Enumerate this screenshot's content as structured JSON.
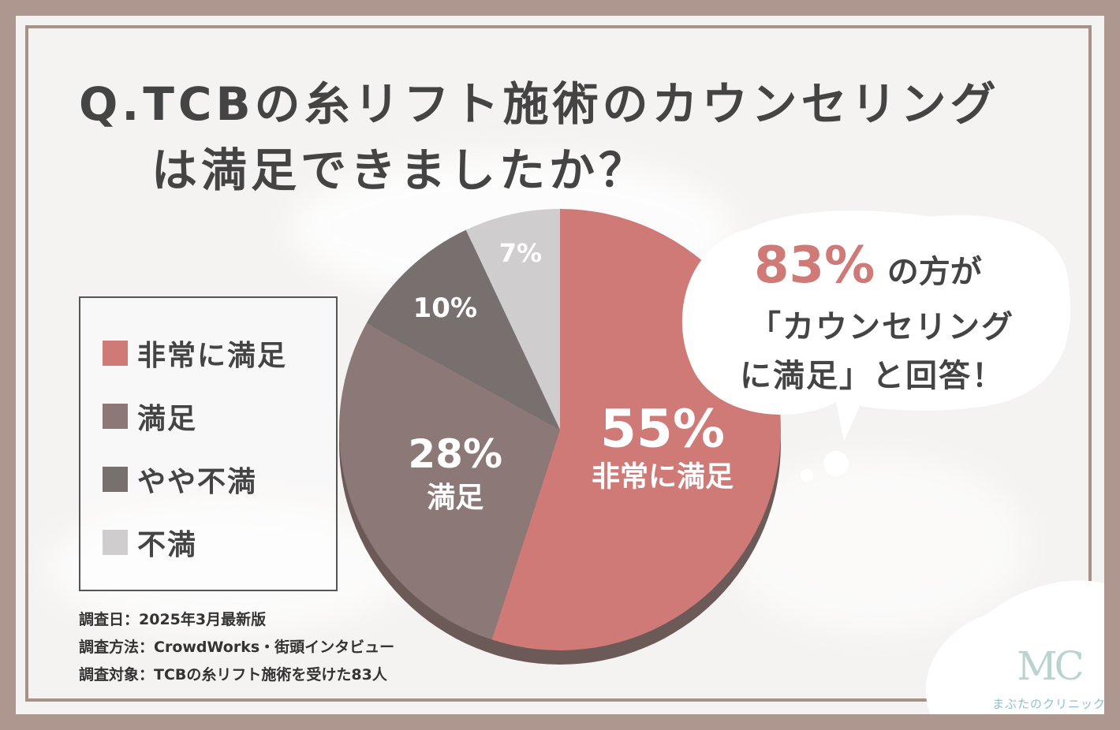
{
  "title": {
    "line1": "Q.TCBの糸リフト施術のカウンセリング",
    "line2": "は満足できましたか？"
  },
  "chart_data": {
    "type": "pie",
    "categories": [
      "非常に満足",
      "満足",
      "やや不満",
      "不満"
    ],
    "values": [
      55,
      28,
      10,
      7
    ],
    "colors": [
      "#cf7a77",
      "#8c7977",
      "#77706f",
      "#cfcdcd"
    ],
    "slice_labels": [
      {
        "pct": "55%",
        "name": "非常に満足"
      },
      {
        "pct": "28%",
        "name": "満足"
      },
      {
        "pct": "10%",
        "name": ""
      },
      {
        "pct": "7%",
        "name": ""
      }
    ]
  },
  "legend": [
    {
      "label": "非常に満足",
      "color": "#cf7a77"
    },
    {
      "label": "満足",
      "color": "#8c7977"
    },
    {
      "label": "やや不満",
      "color": "#77706f"
    },
    {
      "label": "不満",
      "color": "#cfcdcd"
    }
  ],
  "callout": {
    "percent": "83%",
    "text1": "の方が",
    "text2": "「カウンセリング",
    "text3": "に満足」と回答！"
  },
  "notes": [
    "調査日：2025年3月最新版",
    "調査方法：CrowdWorks・街頭インタビュー",
    "調査対象：TCBの糸リフト施術を受けた83人"
  ],
  "logo": {
    "mark": "MC",
    "name": "まぶたのクリニック"
  }
}
